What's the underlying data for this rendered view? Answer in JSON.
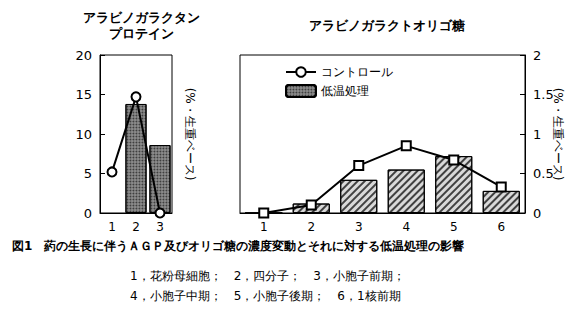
{
  "chart_data": [
    {
      "type": "bar",
      "title": "アラビノガラクタン\nプロテイン",
      "ylabel": "(%・生重ベース)",
      "categories": [
        "1",
        "2",
        "3"
      ],
      "series": [
        {
          "name": "コントロール",
          "type": "line",
          "marker": "circle",
          "color": "#000000",
          "values": [
            5.2,
            14.7,
            0
          ]
        },
        {
          "name": "低温処理",
          "type": "bar",
          "color": "#8c8c8c",
          "values": [
            null,
            13.8,
            8.6
          ]
        }
      ],
      "ylim": [
        0,
        20
      ],
      "yticks": [
        0,
        5,
        10,
        15,
        20
      ],
      "grid": false
    },
    {
      "type": "bar",
      "title": "アラビノガラクトオリゴ糖",
      "ylabel": "(%・生重ベース)",
      "categories": [
        "1",
        "2",
        "3",
        "4",
        "5",
        "6"
      ],
      "series": [
        {
          "name": "コントロール",
          "type": "line",
          "marker": "square",
          "color": "#000000",
          "values": [
            0,
            0.1,
            0.6,
            0.85,
            0.67,
            0.33
          ]
        },
        {
          "name": "低温処理",
          "type": "bar",
          "color": "#d9d9d9",
          "values": [
            0,
            0.12,
            0.42,
            0.55,
            0.72,
            0.28
          ]
        }
      ],
      "ylim": [
        0,
        2
      ],
      "yticks": [
        0,
        0.5,
        1,
        1.5,
        2
      ],
      "grid": false,
      "legend": "upper left"
    }
  ],
  "caption": "図1　葯の生長に伴うＡＧＰ及びオリゴ糖の濃度変動とそれに対する低温処理の影響",
  "notes": [
    "1，花粉母細胞；　2，四分子；　3，小胞子前期；",
    "4，小胞子中期；　5，小胞子後期；　6，1核前期"
  ]
}
